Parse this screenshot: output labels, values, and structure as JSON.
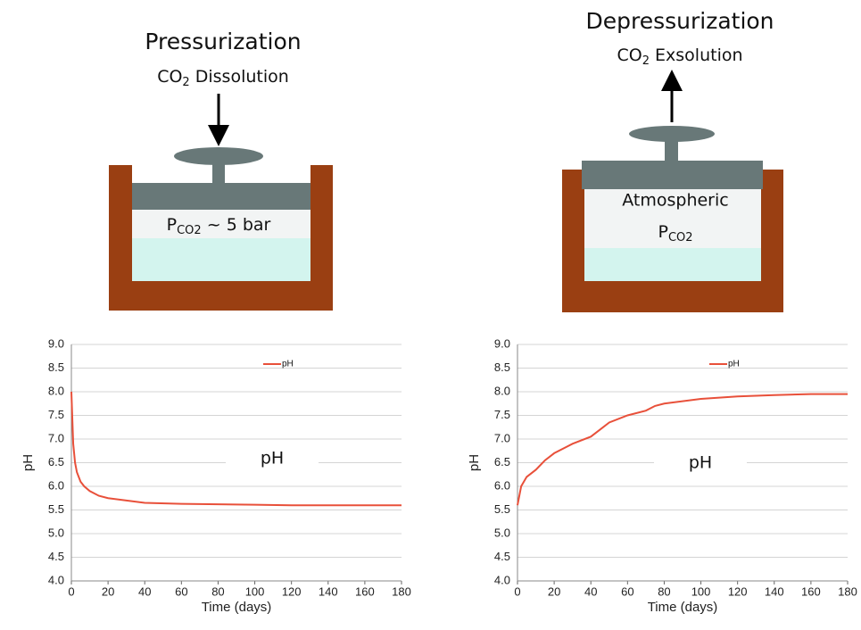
{
  "diagrams": [
    {
      "title": "Pressurization",
      "subtitle": {
        "base": "CO",
        "sub": "2",
        "tail": " Dissolution"
      },
      "label": {
        "base": "P",
        "sub": "CO2",
        "tail": " ~ 5 bar"
      }
    },
    {
      "title": "Depressurization",
      "subtitle": {
        "base": "CO",
        "sub": "2",
        "tail": " Exsolution"
      },
      "label_line1": "Atmospheric",
      "label": {
        "base": "P",
        "sub": "CO2"
      }
    }
  ],
  "chart_data": [
    {
      "type": "line",
      "ylabel": "pH",
      "xlabel": "Time (days)",
      "annotation": "pH",
      "grid": true,
      "legend": "top",
      "xlim": [
        0,
        180
      ],
      "xticks": [
        0,
        20,
        40,
        60,
        80,
        100,
        120,
        140,
        160,
        180
      ],
      "ylim": [
        4,
        9
      ],
      "yticks": [
        {
          "value": 4,
          "label": "4.0"
        },
        {
          "value": 4.5,
          "label": "4.5"
        },
        {
          "value": 5,
          "label": "5.0"
        },
        {
          "value": 5.5,
          "label": "5.5"
        },
        {
          "value": 6,
          "label": "6.0"
        },
        {
          "value": 6.5,
          "label": "6.5"
        },
        {
          "value": 7,
          "label": "7.0"
        },
        {
          "value": 7.5,
          "label": "7.5"
        },
        {
          "value": 8,
          "label": "8.0"
        },
        {
          "value": 8.5,
          "label": "8.5"
        },
        {
          "value": 9,
          "label": "9.0"
        }
      ],
      "x": [
        0,
        1,
        2,
        3,
        5,
        7,
        10,
        15,
        20,
        30,
        40,
        60,
        80,
        100,
        120,
        140,
        160,
        180
      ],
      "series": [
        {
          "name": "pH",
          "color": "#e8503a",
          "values": [
            8.0,
            6.9,
            6.5,
            6.3,
            6.1,
            6.0,
            5.9,
            5.8,
            5.75,
            5.7,
            5.65,
            5.63,
            5.62,
            5.61,
            5.6,
            5.6,
            5.6,
            5.6
          ]
        }
      ]
    },
    {
      "type": "line",
      "ylabel": "pH",
      "xlabel": "Time (days)",
      "annotation": "pH",
      "grid": true,
      "legend": "top",
      "xlim": [
        0,
        180
      ],
      "xticks": [
        0,
        20,
        40,
        60,
        80,
        100,
        120,
        140,
        160,
        180
      ],
      "ylim": [
        4,
        9
      ],
      "yticks": [
        {
          "value": 4,
          "label": "4.0"
        },
        {
          "value": 4.5,
          "label": "4.5"
        },
        {
          "value": 5,
          "label": "5.0"
        },
        {
          "value": 5.5,
          "label": "5.5"
        },
        {
          "value": 6,
          "label": "6.0"
        },
        {
          "value": 6.5,
          "label": "6.5"
        },
        {
          "value": 7,
          "label": "7.0"
        },
        {
          "value": 7.5,
          "label": "7.5"
        },
        {
          "value": 8,
          "label": "8.0"
        },
        {
          "value": 8.5,
          "label": "8.5"
        },
        {
          "value": 9,
          "label": "9.0"
        }
      ],
      "x": [
        0,
        2,
        5,
        10,
        15,
        20,
        30,
        40,
        45,
        50,
        60,
        70,
        75,
        80,
        100,
        120,
        140,
        160,
        180
      ],
      "series": [
        {
          "name": "pH",
          "color": "#e8503a",
          "values": [
            5.6,
            6.0,
            6.2,
            6.35,
            6.55,
            6.7,
            6.9,
            7.05,
            7.2,
            7.35,
            7.5,
            7.6,
            7.7,
            7.75,
            7.85,
            7.9,
            7.93,
            7.95,
            7.95
          ]
        }
      ]
    }
  ]
}
